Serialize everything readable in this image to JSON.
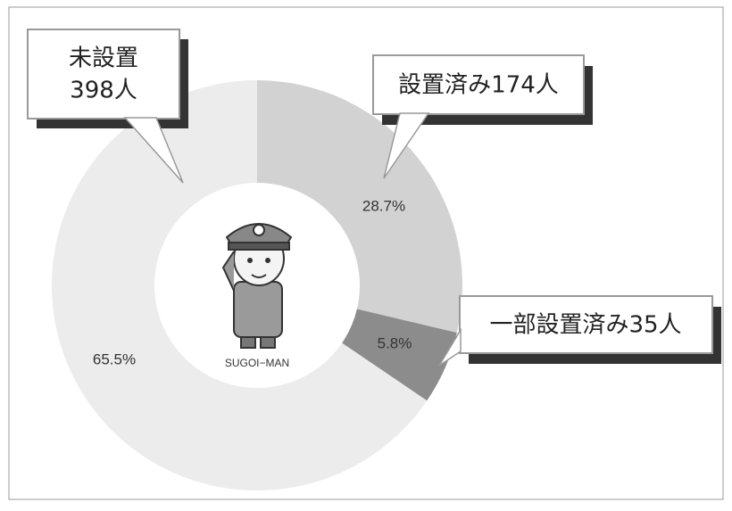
{
  "chart_data": {
    "type": "pie",
    "values": [
      28.7,
      5.8,
      65.5
    ],
    "value_labels": [
      "28.7%",
      "5.8%",
      "65.5%"
    ],
    "colors": [
      "#d2d2d2",
      "#8c8c8c",
      "#ececec"
    ],
    "callouts": [
      [
        "設置済み174人"
      ],
      [
        "一部設置済み35人"
      ],
      [
        "未設置",
        "398人"
      ]
    ],
    "center_label": "SUGOI−MAN"
  }
}
